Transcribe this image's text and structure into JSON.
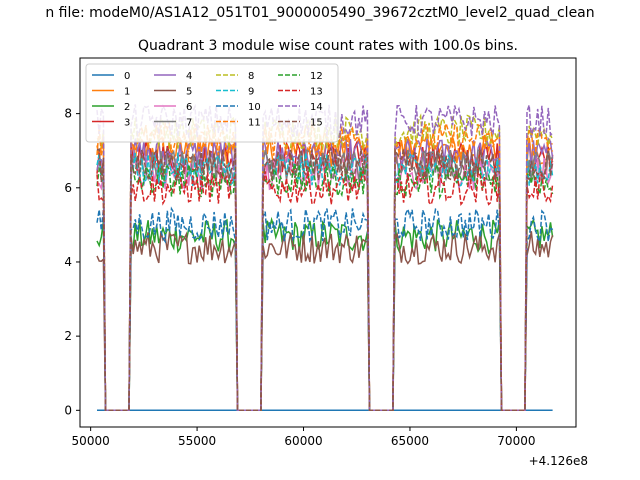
{
  "chart_data": {
    "type": "line",
    "suptitle": "n file: modeM0/AS1A12_051T01_9000005490_39672cztM0_level2_quad_clean",
    "title": "Quadrant 3 module wise count rates with 100.0s bins.",
    "xlabel": "",
    "ylabel": "",
    "x_offset_label": "+4.126e8",
    "xlim": [
      49500,
      72800
    ],
    "ylim": [
      -0.45,
      9.5
    ],
    "xticks": [
      50000,
      55000,
      60000,
      65000,
      70000
    ],
    "xtick_labels": [
      "50000",
      "55000",
      "60000",
      "65000",
      "70000"
    ],
    "yticks": [
      0,
      2,
      4,
      6,
      8
    ],
    "ytick_labels": [
      "0",
      "2",
      "4",
      "6",
      "8"
    ],
    "grid": false,
    "legend_position": "top-left",
    "x_range": [
      50300,
      71700
    ],
    "data_intervals": [
      [
        50300,
        50600
      ],
      [
        51900,
        56800
      ],
      [
        58100,
        63000
      ],
      [
        64300,
        69200
      ],
      [
        70500,
        71700
      ]
    ],
    "series": [
      {
        "name": "0",
        "color": "#1f77b4",
        "dash": "solid",
        "mean": 0.0
      },
      {
        "name": "1",
        "color": "#ff7f0e",
        "dash": "solid",
        "mean": 7.0
      },
      {
        "name": "2",
        "color": "#2ca02c",
        "dash": "solid",
        "mean": 4.7
      },
      {
        "name": "3",
        "color": "#d62728",
        "dash": "solid",
        "mean": 6.8
      },
      {
        "name": "4",
        "color": "#9467bd",
        "dash": "solid",
        "mean": 6.9
      },
      {
        "name": "5",
        "color": "#8c564b",
        "dash": "solid",
        "mean": 4.4
      },
      {
        "name": "6",
        "color": "#e377c2",
        "dash": "solid",
        "mean": 6.4
      },
      {
        "name": "7",
        "color": "#7f7f7f",
        "dash": "solid",
        "mean": 6.6
      },
      {
        "name": "8",
        "color": "#bcbd22",
        "dash": "dashed",
        "mean": 7.5
      },
      {
        "name": "9",
        "color": "#17becf",
        "dash": "dashed",
        "mean": 6.5
      },
      {
        "name": "10",
        "color": "#1f77b4",
        "dash": "dashed",
        "mean": 5.0
      },
      {
        "name": "11",
        "color": "#ff7f0e",
        "dash": "dashed",
        "mean": 7.3
      },
      {
        "name": "12",
        "color": "#2ca02c",
        "dash": "dashed",
        "mean": 6.2
      },
      {
        "name": "13",
        "color": "#d62728",
        "dash": "dashed",
        "mean": 6.0
      },
      {
        "name": "14",
        "color": "#9467bd",
        "dash": "dashed",
        "mean": 7.8
      },
      {
        "name": "15",
        "color": "#8c564b",
        "dash": "dashed",
        "mean": 6.6
      }
    ]
  }
}
